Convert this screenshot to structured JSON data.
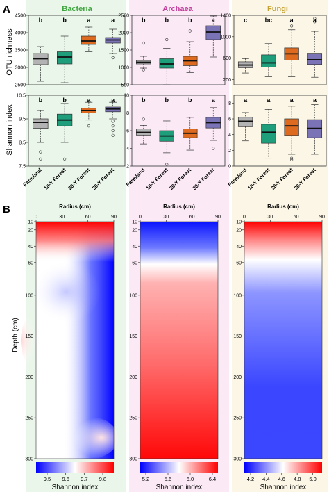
{
  "panel_labels": {
    "a": "A",
    "b": "B"
  },
  "colors": {
    "bacteria_bg": "#eaf6ea",
    "archaea_bg": "#fbeaf6",
    "fungi_bg": "#fbf6e6",
    "bacteria_title": "#3fa63f",
    "archaea_title": "#c23b9a",
    "fungi_title": "#c4a22e",
    "farmland": "#b3b3b3",
    "forest10": "#1f9e7c",
    "forest20": "#dd6a1f",
    "forest30": "#7a73b5",
    "heat_low": "#0000ff",
    "heat_mid": "#ffffff",
    "heat_high": "#ff0000"
  },
  "text": {
    "ylabel_top": "OTU richness",
    "ylabel_bottom": "Shannon index",
    "depth_label": "Depth (cm)",
    "radius_label": "Radius (cm)",
    "colorbar_label": "Shannon index"
  },
  "chart_data": [
    {
      "type": "box",
      "kingdom": "Bacteria",
      "metric": "OTU richness",
      "categories": [
        "Farmland",
        "10-Y Forest",
        "20-Y Forest",
        "30-Y Forest"
      ],
      "ylim": [
        2500,
        4500
      ],
      "yticks": [
        2500,
        3000,
        3500,
        4000,
        4500
      ],
      "letters": [
        "b",
        "b",
        "a",
        "a"
      ],
      "boxes": [
        {
          "min": 2600,
          "q1": 3080,
          "median": 3250,
          "q3": 3400,
          "max": 3600,
          "outliers": []
        },
        {
          "min": 2560,
          "q1": 3100,
          "median": 3300,
          "q3": 3450,
          "max": 3900,
          "outliers": []
        },
        {
          "min": 3450,
          "q1": 3660,
          "median": 3760,
          "q3": 3900,
          "max": 4160,
          "outliers": []
        },
        {
          "min": 3400,
          "q1": 3700,
          "median": 3790,
          "q3": 3860,
          "max": 4100,
          "outliers": [
            3280
          ]
        }
      ]
    },
    {
      "type": "box",
      "kingdom": "Archaea",
      "metric": "OTU richness",
      "categories": [
        "Farmland",
        "10-Y Forest",
        "20-Y Forest",
        "30-Y Forest"
      ],
      "ylim": [
        500,
        2500
      ],
      "yticks": [
        500,
        1000,
        1500,
        2000,
        2500
      ],
      "letters": [
        "b",
        "b",
        "b",
        "a"
      ],
      "boxes": [
        {
          "min": 980,
          "q1": 1100,
          "median": 1150,
          "q3": 1200,
          "max": 1320,
          "outliers": [
            930,
            1700
          ]
        },
        {
          "min": 500,
          "q1": 980,
          "median": 1100,
          "q3": 1250,
          "max": 1550,
          "outliers": [
            1800
          ]
        },
        {
          "min": 850,
          "q1": 1050,
          "median": 1190,
          "q3": 1320,
          "max": 1740,
          "outliers": [
            2050
          ]
        },
        {
          "min": 1300,
          "q1": 1800,
          "median": 2020,
          "q3": 2200,
          "max": 2480,
          "outliers": []
        }
      ]
    },
    {
      "type": "box",
      "kingdom": "Fungi",
      "metric": "OTU richness",
      "categories": [
        "Farmland",
        "10-Y Forest",
        "20-Y Forest",
        "30-Y Forest"
      ],
      "ylim": [
        100,
        1400
      ],
      "yticks": [
        200,
        600,
        1000,
        1400
      ],
      "letters": [
        "c",
        "bc",
        "a",
        "a"
      ],
      "boxes": [
        {
          "min": 320,
          "q1": 420,
          "median": 470,
          "q3": 530,
          "max": 590,
          "outliers": []
        },
        {
          "min": 250,
          "q1": 430,
          "median": 510,
          "q3": 660,
          "max": 870,
          "outliers": []
        },
        {
          "min": 250,
          "q1": 560,
          "median": 680,
          "q3": 790,
          "max": 1130,
          "outliers": [
            1200
          ]
        },
        {
          "min": 240,
          "q1": 480,
          "median": 570,
          "q3": 690,
          "max": 1100,
          "outliers": [
            1280,
            1340
          ]
        }
      ]
    },
    {
      "type": "box",
      "kingdom": "Bacteria",
      "metric": "Shannon index",
      "categories": [
        "Farmland",
        "10-Y Forest",
        "20-Y Forest",
        "30-Y Forest"
      ],
      "ylim": [
        7.5,
        10.5
      ],
      "yticks": [
        7.5,
        8.5,
        9.5,
        10.5
      ],
      "letters": [
        "b",
        "b",
        "a",
        "a"
      ],
      "boxes": [
        {
          "min": 8.5,
          "q1": 9.1,
          "median": 9.35,
          "q3": 9.5,
          "max": 9.85,
          "outliers": [
            8.1,
            7.8
          ]
        },
        {
          "min": 8.5,
          "q1": 9.2,
          "median": 9.45,
          "q3": 9.7,
          "max": 10.15,
          "outliers": [
            7.8
          ]
        },
        {
          "min": 9.45,
          "q1": 9.75,
          "median": 9.85,
          "q3": 9.95,
          "max": 10.2,
          "outliers": [
            9.2
          ]
        },
        {
          "min": 9.5,
          "q1": 9.8,
          "median": 9.92,
          "q3": 10.0,
          "max": 10.2,
          "outliers": [
            9.4,
            9.2,
            9.0,
            8.8
          ]
        }
      ]
    },
    {
      "type": "box",
      "kingdom": "Archaea",
      "metric": "Shannon index",
      "categories": [
        "Farmland",
        "10-Y Forest",
        "20-Y Forest",
        "30-Y Forest"
      ],
      "ylim": [
        2,
        10
      ],
      "yticks": [
        2,
        4,
        6,
        8,
        10
      ],
      "letters": [
        "b",
        "b",
        "b",
        "a"
      ],
      "boxes": [
        {
          "min": 4.5,
          "q1": 5.5,
          "median": 5.8,
          "q3": 6.2,
          "max": 6.6,
          "outliers": [
            7.3
          ]
        },
        {
          "min": 3.5,
          "q1": 4.8,
          "median": 5.4,
          "q3": 6.0,
          "max": 7.1,
          "outliers": [
            2.2
          ]
        },
        {
          "min": 3.8,
          "q1": 5.2,
          "median": 5.7,
          "q3": 6.2,
          "max": 7.5,
          "outliers": []
        },
        {
          "min": 4.9,
          "q1": 6.3,
          "median": 6.9,
          "q3": 7.5,
          "max": 8.6,
          "outliers": [
            4.0
          ]
        }
      ]
    },
    {
      "type": "box",
      "kingdom": "Fungi",
      "metric": "Shannon index",
      "categories": [
        "Farmland",
        "10-Y Forest",
        "20-Y Forest",
        "30-Y Forest"
      ],
      "ylim": [
        0,
        9
      ],
      "yticks": [
        0,
        2,
        4,
        6,
        8
      ],
      "letters": [
        "a",
        "a",
        "a",
        "a"
      ],
      "boxes": [
        {
          "min": 3.2,
          "q1": 5.0,
          "median": 5.7,
          "q3": 6.2,
          "max": 6.8,
          "outliers": []
        },
        {
          "min": 1.0,
          "q1": 2.9,
          "median": 4.3,
          "q3": 5.3,
          "max": 7.2,
          "outliers": []
        },
        {
          "min": 1.5,
          "q1": 3.9,
          "median": 5.1,
          "q3": 6.0,
          "max": 7.6,
          "outliers": [
            0.8,
            1.0
          ]
        },
        {
          "min": 1.5,
          "q1": 3.6,
          "median": 4.8,
          "q3": 5.9,
          "max": 7.8,
          "outliers": []
        }
      ]
    },
    {
      "type": "heatmap",
      "kingdom": "Bacteria",
      "xlabel": "Radius (cm)",
      "ylabel": "Depth (cm)",
      "xticks": [
        0,
        30,
        60,
        90
      ],
      "yticks": [
        10,
        20,
        40,
        60,
        100,
        150,
        200,
        250,
        300
      ],
      "colorbar_ticks": [
        9.5,
        9.6,
        9.7,
        9.8
      ],
      "colorbar_label": "Shannon index"
    },
    {
      "type": "heatmap",
      "kingdom": "Archaea",
      "xlabel": "Radius (cm)",
      "ylabel": "Depth (cm)",
      "xticks": [
        0,
        30,
        60,
        90
      ],
      "yticks": [
        10,
        20,
        40,
        60,
        100,
        150,
        200,
        250,
        300
      ],
      "colorbar_ticks": [
        5.2,
        5.6,
        6.0,
        6.4
      ],
      "colorbar_label": "Shannon index"
    },
    {
      "type": "heatmap",
      "kingdom": "Fungi",
      "xlabel": "Radius (cm)",
      "ylabel": "Depth (cm)",
      "xticks": [
        0,
        30,
        60,
        90
      ],
      "yticks": [
        10,
        20,
        40,
        60,
        100,
        150,
        200,
        250,
        300
      ],
      "colorbar_ticks": [
        4.2,
        4.4,
        4.6,
        4.8,
        5.0
      ],
      "colorbar_label": "Shannon index"
    }
  ]
}
